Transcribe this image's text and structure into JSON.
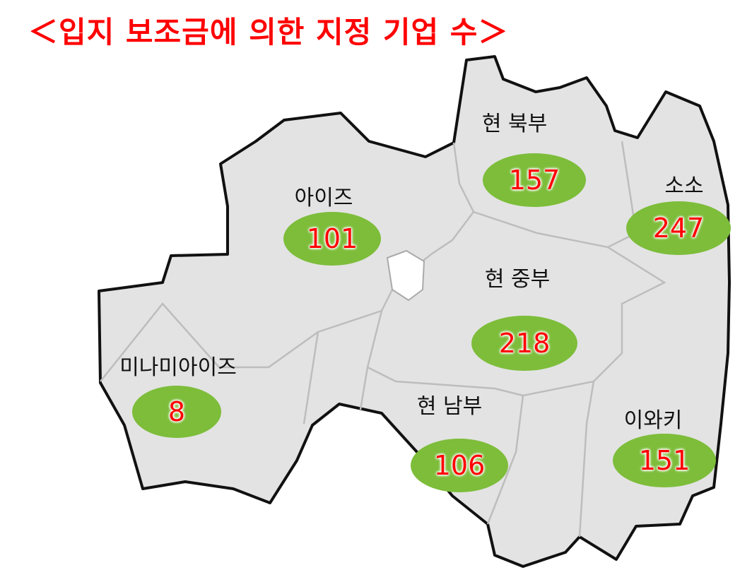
{
  "title": "＜입지 보조금에 의한 지정 기업 수＞",
  "colors": {
    "title": "#ff0000",
    "bubble": "#7dbd3a",
    "number": "#ff0000",
    "land": "#e3e3e3"
  },
  "regions": [
    {
      "id": "north",
      "name": "현 북부",
      "count": "157"
    },
    {
      "id": "aizu",
      "name": "아이즈",
      "count": "101"
    },
    {
      "id": "soso",
      "name": "소소",
      "count": "247"
    },
    {
      "id": "central",
      "name": "현 중부",
      "count": "218"
    },
    {
      "id": "minamiaizu",
      "name": "미나미아이즈",
      "count": "8"
    },
    {
      "id": "south",
      "name": "현 남부",
      "count": "106"
    },
    {
      "id": "iwaki",
      "name": "이와키",
      "count": "151"
    }
  ]
}
